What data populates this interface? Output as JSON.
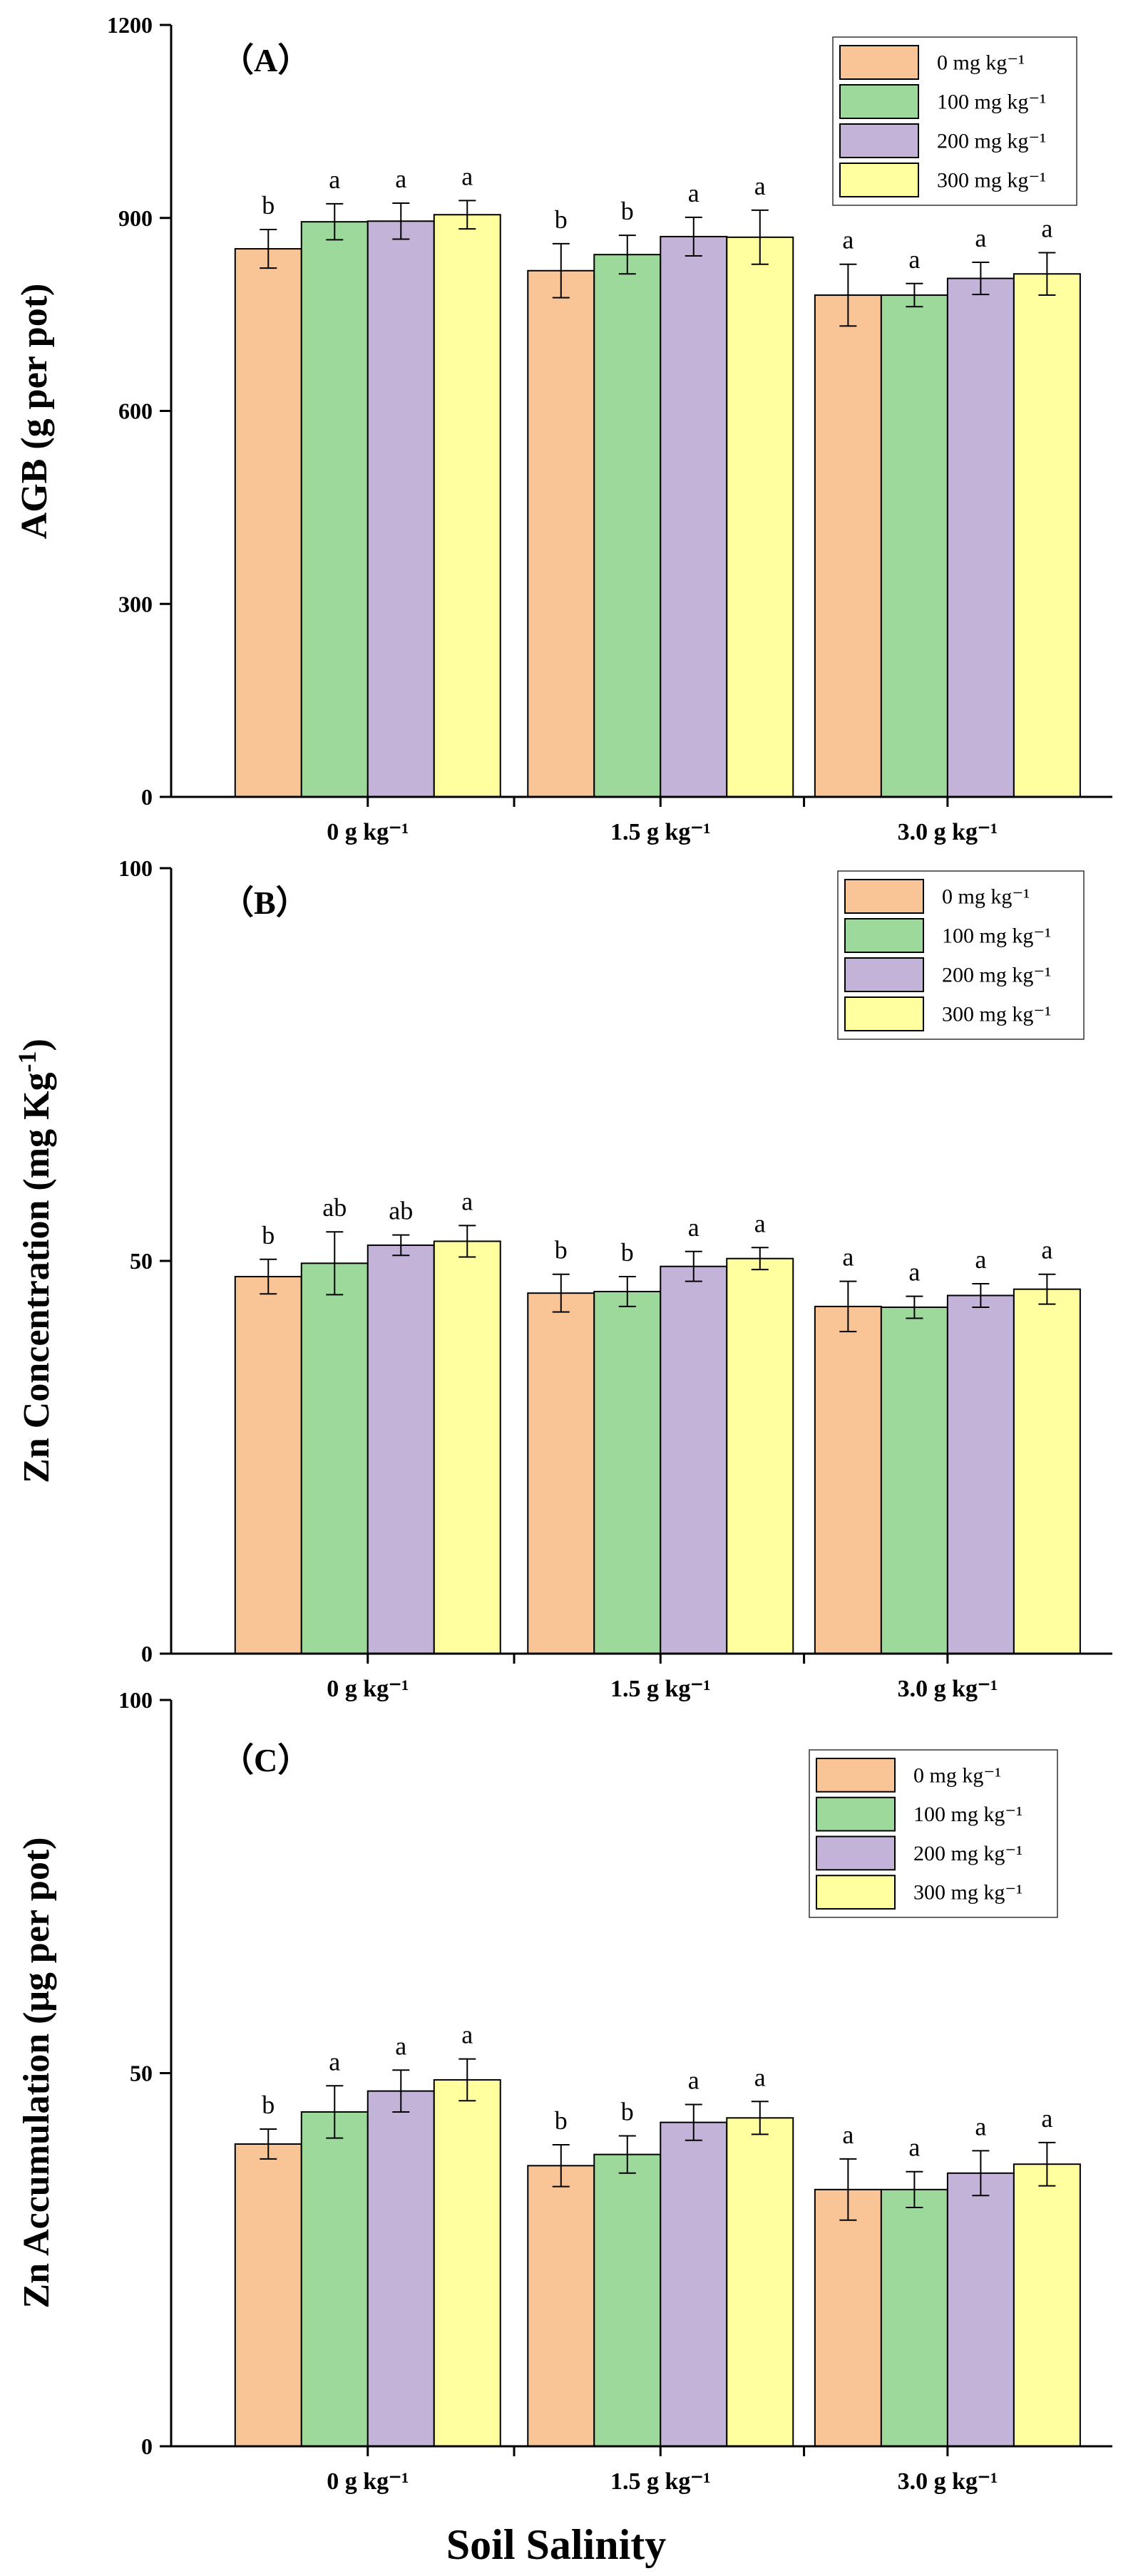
{
  "colors": {
    "0 mg kg⁻¹": "#F9C597",
    "100 mg kg⁻¹": "#9DD99B",
    "200 mg kg⁻¹": "#C4B3D9",
    "300 mg kg⁻¹": "#FFFF9F"
  },
  "x_axis_title": "Soil Salinity",
  "chart_data": [
    {
      "type": "bar",
      "panel_label": "（A）",
      "ylabel": "AGB (g per pot)",
      "ylim": [
        0,
        1200
      ],
      "yticks": [
        "0",
        "300",
        "600",
        "900",
        "1200"
      ],
      "ytick_values": [
        0,
        300,
        600,
        900,
        1200
      ],
      "categories": [
        "0 g kg⁻¹",
        "1.5 g kg⁻¹",
        "3.0 g kg⁻¹"
      ],
      "legend_position": "top-right",
      "series": [
        {
          "name": "0 mg kg⁻¹",
          "values": [
            852,
            818,
            780
          ],
          "errors": [
            30,
            42,
            48
          ],
          "letters": [
            "b",
            "b",
            "a"
          ]
        },
        {
          "name": "100 mg kg⁻¹",
          "values": [
            894,
            843,
            780
          ],
          "errors": [
            28,
            30,
            18
          ],
          "letters": [
            "a",
            "b",
            "a"
          ]
        },
        {
          "name": "200 mg kg⁻¹",
          "values": [
            895,
            871,
            806
          ],
          "errors": [
            28,
            30,
            25
          ],
          "letters": [
            "a",
            "a",
            "a"
          ]
        },
        {
          "name": "300 mg kg⁻¹",
          "values": [
            905,
            870,
            813
          ],
          "errors": [
            22,
            42,
            33
          ],
          "letters": [
            "a",
            "a",
            "a"
          ]
        }
      ]
    },
    {
      "type": "bar",
      "panel_label": "（B）",
      "ylabel": "Zn Concentration",
      "ylabel_unit_prefix": "(mg Kg",
      "ylabel_unit_sup": "-1",
      "ylabel_unit_suffix": ")",
      "ylim": [
        0,
        100
      ],
      "yticks": [
        "0",
        "50",
        "100"
      ],
      "ytick_values": [
        0,
        50,
        100
      ],
      "categories": [
        "0 g kg⁻¹",
        "1.5 g kg⁻¹",
        "3.0 g kg⁻¹"
      ],
      "legend_position": "top-right",
      "series": [
        {
          "name": "0 mg kg⁻¹",
          "values": [
            48.0,
            45.9,
            44.2
          ],
          "errors": [
            2.2,
            2.4,
            3.2
          ],
          "letters": [
            "b",
            "b",
            "a"
          ]
        },
        {
          "name": "100 mg kg⁻¹",
          "values": [
            49.7,
            46.1,
            44.1
          ],
          "errors": [
            4.0,
            1.9,
            1.4
          ],
          "letters": [
            "ab",
            "b",
            "a"
          ]
        },
        {
          "name": "200 mg kg⁻¹",
          "values": [
            52.0,
            49.3,
            45.6
          ],
          "errors": [
            1.3,
            1.9,
            1.5
          ],
          "letters": [
            "ab",
            "a",
            "a"
          ]
        },
        {
          "name": "300 mg kg⁻¹",
          "values": [
            52.5,
            50.3,
            46.4
          ],
          "errors": [
            2.0,
            1.4,
            1.9
          ],
          "letters": [
            "a",
            "a",
            "a"
          ]
        }
      ]
    },
    {
      "type": "bar",
      "panel_label": "（C）",
      "ylabel": "Zn Accumulation  (μg per pot)",
      "ylim": [
        0,
        100
      ],
      "yticks": [
        "0",
        "50",
        "100"
      ],
      "ytick_values": [
        0,
        50,
        100
      ],
      "categories": [
        "0 g kg⁻¹",
        "1.5 g kg⁻¹",
        "3.0 g kg⁻¹"
      ],
      "legend_position": "top-right",
      "series": [
        {
          "name": "0 mg kg⁻¹",
          "values": [
            40.5,
            37.6,
            34.4
          ],
          "errors": [
            2.0,
            2.8,
            4.1
          ],
          "letters": [
            "b",
            "b",
            "a"
          ]
        },
        {
          "name": "100 mg kg⁻¹",
          "values": [
            44.8,
            39.1,
            34.4
          ],
          "errors": [
            3.5,
            2.5,
            2.4
          ],
          "letters": [
            "a",
            "b",
            "a"
          ]
        },
        {
          "name": "200 mg kg⁻¹",
          "values": [
            47.6,
            43.4,
            36.6
          ],
          "errors": [
            2.8,
            2.4,
            3.0
          ],
          "letters": [
            "a",
            "a",
            "a"
          ]
        },
        {
          "name": "300 mg kg⁻¹",
          "values": [
            49.1,
            44.0,
            37.8
          ],
          "errors": [
            2.8,
            2.2,
            2.9
          ],
          "letters": [
            "a",
            "a",
            "a"
          ]
        }
      ]
    }
  ]
}
